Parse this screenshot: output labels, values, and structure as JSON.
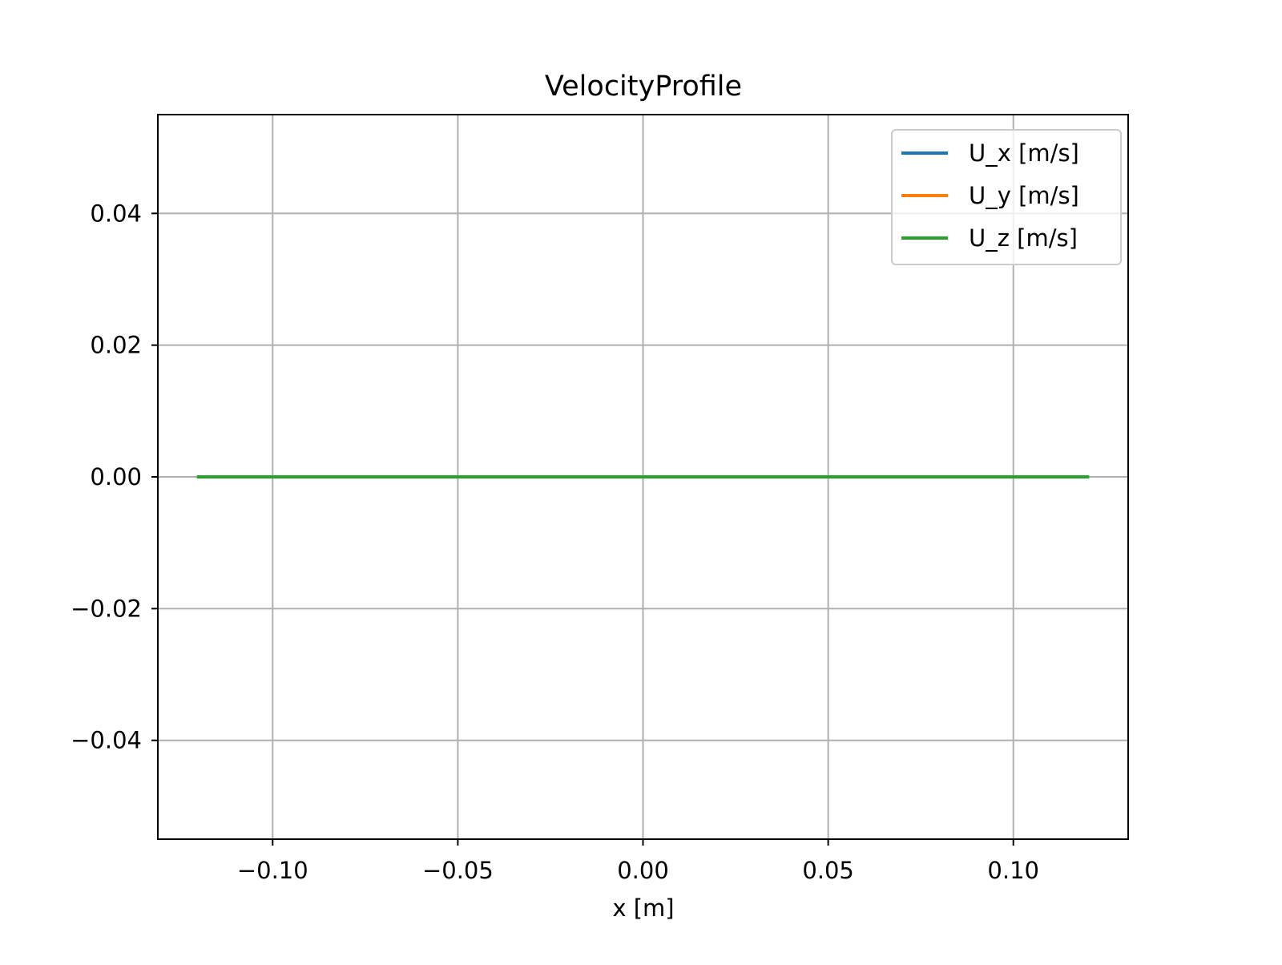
{
  "chart_data": {
    "type": "line",
    "title": "VelocityProfile",
    "xlabel": "x [m]",
    "ylabel": "",
    "xlim": [
      -0.131,
      0.131
    ],
    "ylim": [
      -0.055,
      0.055
    ],
    "x_ticks": [
      {
        "value": -0.1,
        "label": "−0.10"
      },
      {
        "value": -0.05,
        "label": "−0.05"
      },
      {
        "value": 0.0,
        "label": "0.00"
      },
      {
        "value": 0.05,
        "label": "0.05"
      },
      {
        "value": 0.1,
        "label": "0.10"
      }
    ],
    "y_ticks": [
      {
        "value": 0.04,
        "label": "0.04"
      },
      {
        "value": 0.02,
        "label": "0.02"
      },
      {
        "value": 0.0,
        "label": "0.00"
      },
      {
        "value": -0.02,
        "label": "−0.02"
      },
      {
        "value": -0.04,
        "label": "−0.04"
      }
    ],
    "grid": true,
    "legend_position": "top-right",
    "series": [
      {
        "name": "U_x [m/s]",
        "color": "#1f77b4",
        "x": [
          -0.12,
          0.12
        ],
        "y": [
          0,
          0
        ]
      },
      {
        "name": "U_y [m/s]",
        "color": "#ff7f0e",
        "x": [
          -0.12,
          0.12
        ],
        "y": [
          0,
          0
        ]
      },
      {
        "name": "U_z [m/s]",
        "color": "#2ca02c",
        "x": [
          -0.12,
          0.12
        ],
        "y": [
          0,
          0
        ]
      }
    ]
  }
}
